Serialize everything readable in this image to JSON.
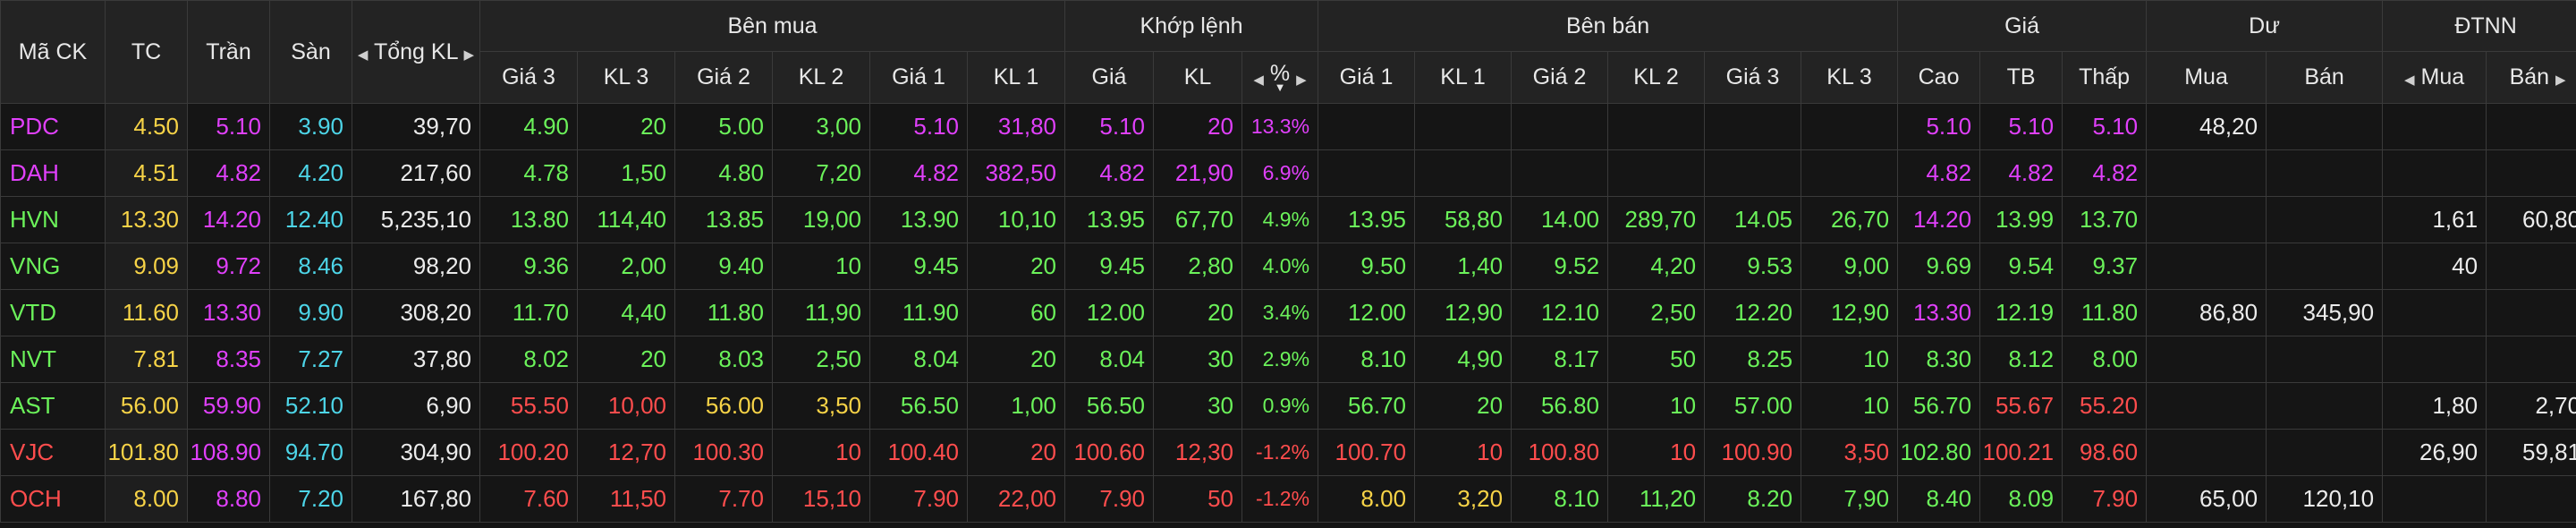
{
  "headers": {
    "symbol": "Mã CK",
    "ref": "TC",
    "ceiling": "Trần",
    "floor": "Sàn",
    "total_volume": "Tổng KL",
    "bid_group": "Bên mua",
    "match_group": "Khớp lệnh",
    "ask_group": "Bên bán",
    "price_group": "Giá",
    "remain_group": "Dư",
    "foreign_group": "ĐTNN",
    "bid_price3": "Giá 3",
    "bid_vol3": "KL 3",
    "bid_price2": "Giá 2",
    "bid_vol2": "KL 2",
    "bid_price1": "Giá 1",
    "bid_vol1": "KL 1",
    "match_price": "Giá",
    "match_vol": "KL",
    "match_pct": "%",
    "ask_price1": "Giá 1",
    "ask_vol1": "KL 1",
    "ask_price2": "Giá 2",
    "ask_vol2": "KL 2",
    "ask_price3": "Giá 3",
    "ask_vol3": "KL 3",
    "high": "Cao",
    "avg": "TB",
    "low": "Thấp",
    "remain_buy": "Mua",
    "remain_sell": "Bán",
    "foreign_buy": "Mua",
    "foreign_sell": "Bán"
  },
  "icons": {
    "left_arrow": "left-triangle",
    "right_arrow": "right-triangle",
    "sort": "sort-down-triangle"
  },
  "colors": {
    "reference": "#f7d347",
    "ceiling": "#e040fb",
    "floor": "#4dd5e8",
    "up": "#6bf25a",
    "down": "#ff4d4d",
    "neutral": "#ececec"
  },
  "rows": [
    {
      "sym": [
        "PDC",
        "ce"
      ],
      "tc": "4.50",
      "tran": "5.10",
      "san": "3.90",
      "tkl": "39,70",
      "bp3": [
        "4.90",
        "up"
      ],
      "bv3": [
        "20",
        "up"
      ],
      "bp2": [
        "5.00",
        "up"
      ],
      "bv2": [
        "3,00",
        "up"
      ],
      "bp1": [
        "5.10",
        "ce"
      ],
      "bv1": [
        "31,80",
        "ce"
      ],
      "mp": [
        "5.10",
        "ce"
      ],
      "mv": [
        "20",
        "ce"
      ],
      "pct": [
        "13.3%",
        "ce"
      ],
      "ap1": [
        "",
        ""
      ],
      "av1": [
        "",
        ""
      ],
      "ap2": [
        "",
        ""
      ],
      "av2": [
        "",
        ""
      ],
      "ap3": [
        "",
        ""
      ],
      "av3": [
        "",
        ""
      ],
      "hi": [
        "5.10",
        "ce"
      ],
      "tb": [
        "5.10",
        "ce"
      ],
      "lo": [
        "5.10",
        "ce"
      ],
      "rb": "48,20",
      "rs": "",
      "fb": "",
      "fs": ""
    },
    {
      "sym": [
        "DAH",
        "ce"
      ],
      "tc": "4.51",
      "tran": "4.82",
      "san": "4.20",
      "tkl": "217,60",
      "bp3": [
        "4.78",
        "up"
      ],
      "bv3": [
        "1,50",
        "up"
      ],
      "bp2": [
        "4.80",
        "up"
      ],
      "bv2": [
        "7,20",
        "up"
      ],
      "bp1": [
        "4.82",
        "ce"
      ],
      "bv1": [
        "382,50",
        "ce"
      ],
      "mp": [
        "4.82",
        "ce"
      ],
      "mv": [
        "21,90",
        "ce"
      ],
      "pct": [
        "6.9%",
        "ce"
      ],
      "ap1": [
        "",
        ""
      ],
      "av1": [
        "",
        ""
      ],
      "ap2": [
        "",
        ""
      ],
      "av2": [
        "",
        ""
      ],
      "ap3": [
        "",
        ""
      ],
      "av3": [
        "",
        ""
      ],
      "hi": [
        "4.82",
        "ce"
      ],
      "tb": [
        "4.82",
        "ce"
      ],
      "lo": [
        "4.82",
        "ce"
      ],
      "rb": "",
      "rs": "",
      "fb": "",
      "fs": ""
    },
    {
      "sym": [
        "HVN",
        "up"
      ],
      "tc": "13.30",
      "tran": "14.20",
      "san": "12.40",
      "tkl": "5,235,10",
      "bp3": [
        "13.80",
        "up"
      ],
      "bv3": [
        "114,40",
        "up"
      ],
      "bp2": [
        "13.85",
        "up"
      ],
      "bv2": [
        "19,00",
        "up"
      ],
      "bp1": [
        "13.90",
        "up"
      ],
      "bv1": [
        "10,10",
        "up"
      ],
      "mp": [
        "13.95",
        "up"
      ],
      "mv": [
        "67,70",
        "up"
      ],
      "pct": [
        "4.9%",
        "up"
      ],
      "ap1": [
        "13.95",
        "up"
      ],
      "av1": [
        "58,80",
        "up"
      ],
      "ap2": [
        "14.00",
        "up"
      ],
      "av2": [
        "289,70",
        "up"
      ],
      "ap3": [
        "14.05",
        "up"
      ],
      "av3": [
        "26,70",
        "up"
      ],
      "hi": [
        "14.20",
        "ce"
      ],
      "tb": [
        "13.99",
        "up"
      ],
      "lo": [
        "13.70",
        "up"
      ],
      "rb": "",
      "rs": "",
      "fb": "1,61",
      "fs": "60,80"
    },
    {
      "sym": [
        "VNG",
        "up"
      ],
      "tc": "9.09",
      "tran": "9.72",
      "san": "8.46",
      "tkl": "98,20",
      "bp3": [
        "9.36",
        "up"
      ],
      "bv3": [
        "2,00",
        "up"
      ],
      "bp2": [
        "9.40",
        "up"
      ],
      "bv2": [
        "10",
        "up"
      ],
      "bp1": [
        "9.45",
        "up"
      ],
      "bv1": [
        "20",
        "up"
      ],
      "mp": [
        "9.45",
        "up"
      ],
      "mv": [
        "2,80",
        "up"
      ],
      "pct": [
        "4.0%",
        "up"
      ],
      "ap1": [
        "9.50",
        "up"
      ],
      "av1": [
        "1,40",
        "up"
      ],
      "ap2": [
        "9.52",
        "up"
      ],
      "av2": [
        "4,20",
        "up"
      ],
      "ap3": [
        "9.53",
        "up"
      ],
      "av3": [
        "9,00",
        "up"
      ],
      "hi": [
        "9.69",
        "up"
      ],
      "tb": [
        "9.54",
        "up"
      ],
      "lo": [
        "9.37",
        "up"
      ],
      "rb": "",
      "rs": "",
      "fb": "40",
      "fs": ""
    },
    {
      "sym": [
        "VTD",
        "up"
      ],
      "tc": "11.60",
      "tran": "13.30",
      "san": "9.90",
      "tkl": "308,20",
      "bp3": [
        "11.70",
        "up"
      ],
      "bv3": [
        "4,40",
        "up"
      ],
      "bp2": [
        "11.80",
        "up"
      ],
      "bv2": [
        "11,90",
        "up"
      ],
      "bp1": [
        "11.90",
        "up"
      ],
      "bv1": [
        "60",
        "up"
      ],
      "mp": [
        "12.00",
        "up"
      ],
      "mv": [
        "20",
        "up"
      ],
      "pct": [
        "3.4%",
        "up"
      ],
      "ap1": [
        "12.00",
        "up"
      ],
      "av1": [
        "12,90",
        "up"
      ],
      "ap2": [
        "12.10",
        "up"
      ],
      "av2": [
        "2,50",
        "up"
      ],
      "ap3": [
        "12.20",
        "up"
      ],
      "av3": [
        "12,90",
        "up"
      ],
      "hi": [
        "13.30",
        "ce"
      ],
      "tb": [
        "12.19",
        "up"
      ],
      "lo": [
        "11.80",
        "up"
      ],
      "rb": "86,80",
      "rs": "345,90",
      "fb": "",
      "fs": ""
    },
    {
      "sym": [
        "NVT",
        "up"
      ],
      "tc": "7.81",
      "tran": "8.35",
      "san": "7.27",
      "tkl": "37,80",
      "bp3": [
        "8.02",
        "up"
      ],
      "bv3": [
        "20",
        "up"
      ],
      "bp2": [
        "8.03",
        "up"
      ],
      "bv2": [
        "2,50",
        "up"
      ],
      "bp1": [
        "8.04",
        "up"
      ],
      "bv1": [
        "20",
        "up"
      ],
      "mp": [
        "8.04",
        "up"
      ],
      "mv": [
        "30",
        "up"
      ],
      "pct": [
        "2.9%",
        "up"
      ],
      "ap1": [
        "8.10",
        "up"
      ],
      "av1": [
        "4,90",
        "up"
      ],
      "ap2": [
        "8.17",
        "up"
      ],
      "av2": [
        "50",
        "up"
      ],
      "ap3": [
        "8.25",
        "up"
      ],
      "av3": [
        "10",
        "up"
      ],
      "hi": [
        "8.30",
        "up"
      ],
      "tb": [
        "8.12",
        "up"
      ],
      "lo": [
        "8.00",
        "up"
      ],
      "rb": "",
      "rs": "",
      "fb": "",
      "fs": ""
    },
    {
      "sym": [
        "AST",
        "up"
      ],
      "tc": "56.00",
      "tran": "59.90",
      "san": "52.10",
      "tkl": "6,90",
      "bp3": [
        "55.50",
        "dn"
      ],
      "bv3": [
        "10,00",
        "dn"
      ],
      "bp2": [
        "56.00",
        "tc"
      ],
      "bv2": [
        "3,50",
        "tc"
      ],
      "bp1": [
        "56.50",
        "up"
      ],
      "bv1": [
        "1,00",
        "up"
      ],
      "mp": [
        "56.50",
        "up"
      ],
      "mv": [
        "30",
        "up"
      ],
      "pct": [
        "0.9%",
        "up"
      ],
      "ap1": [
        "56.70",
        "up"
      ],
      "av1": [
        "20",
        "up"
      ],
      "ap2": [
        "56.80",
        "up"
      ],
      "av2": [
        "10",
        "up"
      ],
      "ap3": [
        "57.00",
        "up"
      ],
      "av3": [
        "10",
        "up"
      ],
      "hi": [
        "56.70",
        "up"
      ],
      "tb": [
        "55.67",
        "dn"
      ],
      "lo": [
        "55.20",
        "dn"
      ],
      "rb": "",
      "rs": "",
      "fb": "1,80",
      "fs": "2,70"
    },
    {
      "sym": [
        "VJC",
        "dn"
      ],
      "tc": "101.80",
      "tran": "108.90",
      "san": "94.70",
      "tkl": "304,90",
      "bp3": [
        "100.20",
        "dn"
      ],
      "bv3": [
        "12,70",
        "dn"
      ],
      "bp2": [
        "100.30",
        "dn"
      ],
      "bv2": [
        "10",
        "dn"
      ],
      "bp1": [
        "100.40",
        "dn"
      ],
      "bv1": [
        "20",
        "dn"
      ],
      "mp": [
        "100.60",
        "dn"
      ],
      "mv": [
        "12,30",
        "dn"
      ],
      "pct": [
        "-1.2%",
        "dn"
      ],
      "ap1": [
        "100.70",
        "dn"
      ],
      "av1": [
        "10",
        "dn"
      ],
      "ap2": [
        "100.80",
        "dn"
      ],
      "av2": [
        "10",
        "dn"
      ],
      "ap3": [
        "100.90",
        "dn"
      ],
      "av3": [
        "3,50",
        "dn"
      ],
      "hi": [
        "102.80",
        "up"
      ],
      "tb": [
        "100.21",
        "dn"
      ],
      "lo": [
        "98.60",
        "dn"
      ],
      "rb": "",
      "rs": "",
      "fb": "26,90",
      "fs": "59,81"
    },
    {
      "sym": [
        "OCH",
        "dn"
      ],
      "tc": "8.00",
      "tran": "8.80",
      "san": "7.20",
      "tkl": "167,80",
      "bp3": [
        "7.60",
        "dn"
      ],
      "bv3": [
        "11,50",
        "dn"
      ],
      "bp2": [
        "7.70",
        "dn"
      ],
      "bv2": [
        "15,10",
        "dn"
      ],
      "bp1": [
        "7.90",
        "dn"
      ],
      "bv1": [
        "22,00",
        "dn"
      ],
      "mp": [
        "7.90",
        "dn"
      ],
      "mv": [
        "50",
        "dn"
      ],
      "pct": [
        "-1.2%",
        "dn"
      ],
      "ap1": [
        "8.00",
        "tc"
      ],
      "av1": [
        "3,20",
        "tc"
      ],
      "ap2": [
        "8.10",
        "up"
      ],
      "av2": [
        "11,20",
        "up"
      ],
      "ap3": [
        "8.20",
        "up"
      ],
      "av3": [
        "7,90",
        "up"
      ],
      "hi": [
        "8.40",
        "up"
      ],
      "tb": [
        "8.09",
        "up"
      ],
      "lo": [
        "7.90",
        "dn"
      ],
      "rb": "65,00",
      "rs": "120,10",
      "fb": "",
      "fs": ""
    }
  ]
}
